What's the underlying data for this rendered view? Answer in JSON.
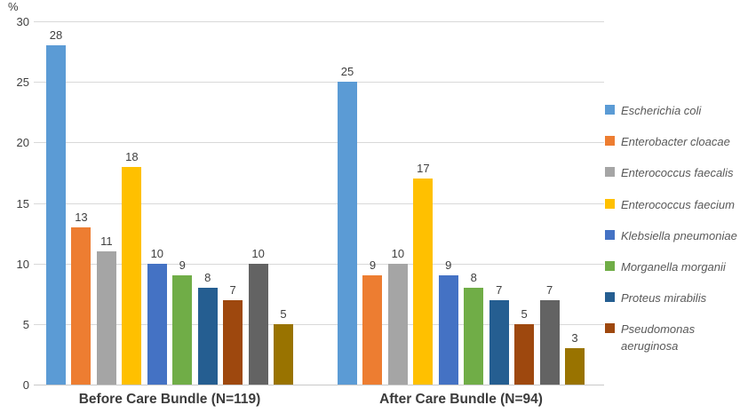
{
  "chart_data": {
    "type": "bar",
    "title": "",
    "ylabel": "%",
    "xlabel": "",
    "ylim": [
      0,
      30
    ],
    "yticks": [
      0,
      5,
      10,
      15,
      20,
      25,
      30
    ],
    "grid": true,
    "data_labels": true,
    "legend_position": "right",
    "categories": [
      "Before Care Bundle (N=119)",
      "After Care Bundle (N=94)"
    ],
    "series": [
      {
        "name": "Escherichia coli",
        "color": "#5B9BD5",
        "values": [
          28,
          25
        ],
        "in_legend": true
      },
      {
        "name": "Enterobacter cloacae",
        "color": "#ED7D31",
        "values": [
          13,
          9
        ],
        "in_legend": true
      },
      {
        "name": "Enterococcus faecalis",
        "color": "#A5A5A5",
        "values": [
          11,
          10
        ],
        "in_legend": true
      },
      {
        "name": "Enterococcus faecium",
        "color": "#FFC000",
        "values": [
          18,
          17
        ],
        "in_legend": true
      },
      {
        "name": "Klebsiella pneumoniae",
        "color": "#4472C4",
        "values": [
          10,
          9
        ],
        "in_legend": true
      },
      {
        "name": "Morganella morganii",
        "color": "#70AD47",
        "values": [
          9,
          8
        ],
        "in_legend": true
      },
      {
        "name": "Proteus mirabilis",
        "color": "#255E91",
        "values": [
          8,
          7
        ],
        "in_legend": true
      },
      {
        "name": "Pseudomonas aeruginosa",
        "color": "#9E480E",
        "values": [
          7,
          5
        ],
        "in_legend": true
      },
      {
        "name": "",
        "color": "#636363",
        "values": [
          10,
          7
        ],
        "in_legend": false
      },
      {
        "name": "",
        "color": "#997300",
        "values": [
          5,
          3
        ],
        "in_legend": false
      }
    ]
  },
  "colors": {
    "gridline": "#d9d9d9",
    "axis_line": "#c9c9c9",
    "tick_text": "#404040",
    "label_text": "#404040",
    "category_text": "#3b3b3b",
    "legend_text": "#595959",
    "background": "#ffffff"
  }
}
